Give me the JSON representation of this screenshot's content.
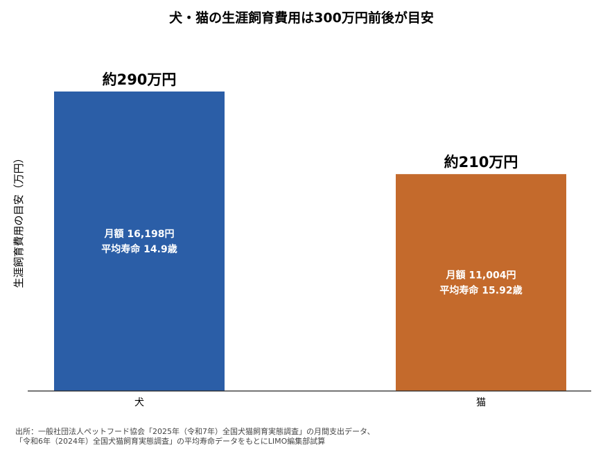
{
  "chart_data": {
    "type": "bar",
    "title": "犬・猫の生涯飼育費用は300万円前後が目安",
    "ylabel": "生涯飼育費用の目安（万円）",
    "xlabel": "",
    "categories": [
      "犬",
      "猫"
    ],
    "values": [
      290,
      210
    ],
    "ylim": [
      0,
      300
    ],
    "grid": false,
    "value_labels": [
      "約290万円",
      "約210万円"
    ],
    "bar_annotations": [
      [
        "月額 16,198円",
        "平均寿命 14.9歳"
      ],
      [
        "月額 11,004円",
        "平均寿命 15.92歳"
      ]
    ],
    "colors": [
      "#2b5ea7",
      "#c46a2c"
    ]
  },
  "source_note": [
    "出所：一般社団法人ペットフード協会「2025年（令和7年）全国犬猫飼育実態調査」の月間支出データ、",
    "「令和6年（2024年）全国犬猫飼育実態調査」の平均寿命データをもとにLIMO編集部試算"
  ]
}
